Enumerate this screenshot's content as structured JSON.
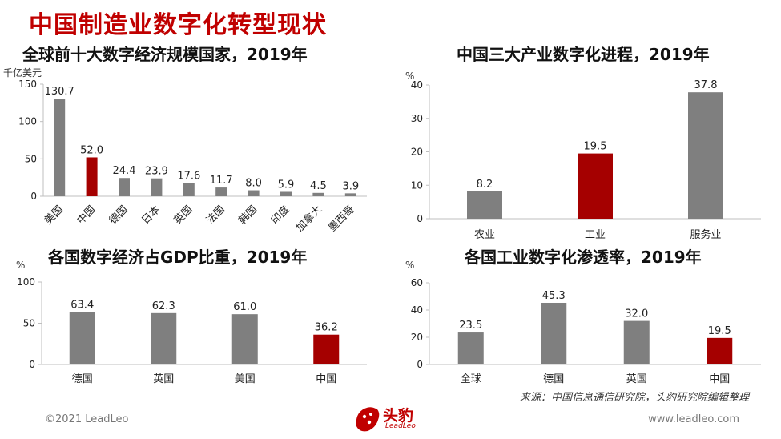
{
  "page_title": "中国制造业数字化转型现状",
  "colors": {
    "highlight": "#a50000",
    "default": "#7f7f7f",
    "title": "#c00000"
  },
  "chart_data": [
    {
      "type": "bar",
      "title": "全球前十大数字经济规模国家，2019年",
      "unit": "千亿美元",
      "categories": [
        "美国",
        "中国",
        "德国",
        "日本",
        "英国",
        "法国",
        "韩国",
        "印度",
        "加拿大",
        "墨西哥"
      ],
      "values": [
        130.7,
        52.0,
        24.4,
        23.9,
        17.6,
        11.7,
        8.0,
        5.9,
        4.5,
        3.9
      ],
      "value_labels": [
        "130.7",
        "52.0",
        "24.4",
        "23.9",
        "17.6",
        "11.7",
        "8.0",
        "5.9",
        "4.5",
        "3.9"
      ],
      "highlight_index": 1,
      "ylim": [
        0,
        150
      ],
      "yticks": [
        0,
        50,
        100,
        150
      ],
      "ytick_labels": [
        "0",
        "50",
        "100",
        "150"
      ],
      "rotated_labels": true
    },
    {
      "type": "bar",
      "title": "中国三大产业数字化进程，2019年",
      "unit": "%",
      "categories": [
        "农业",
        "工业",
        "服务业"
      ],
      "values": [
        8.2,
        19.5,
        37.8
      ],
      "value_labels": [
        "8.2",
        "19.5",
        "37.8"
      ],
      "highlight_index": 1,
      "ylim": [
        0,
        40
      ],
      "yticks": [
        0,
        10,
        20,
        30,
        40
      ],
      "ytick_labels": [
        "0",
        "10",
        "20",
        "30",
        "40"
      ],
      "rotated_labels": false
    },
    {
      "type": "bar",
      "title": "各国数字经济占GDP比重，2019年",
      "unit": "%",
      "categories": [
        "德国",
        "英国",
        "美国",
        "中国"
      ],
      "values": [
        63.4,
        62.3,
        61.0,
        36.2
      ],
      "value_labels": [
        "63.4",
        "62.3",
        "61.0",
        "36.2"
      ],
      "highlight_index": 3,
      "ylim": [
        0,
        100
      ],
      "yticks": [
        0,
        50,
        100
      ],
      "ytick_labels": [
        "0",
        "50",
        "100"
      ],
      "rotated_labels": false
    },
    {
      "type": "bar",
      "title": "各国工业数字化渗透率，2019年",
      "unit": "%",
      "categories": [
        "全球",
        "德国",
        "英国",
        "中国"
      ],
      "values": [
        23.5,
        45.3,
        32.0,
        19.5
      ],
      "value_labels": [
        "23.5",
        "45.3",
        "32.0",
        "19.5"
      ],
      "highlight_index": 3,
      "ylim": [
        0,
        60
      ],
      "yticks": [
        0,
        20,
        40,
        60
      ],
      "ytick_labels": [
        "0",
        "20",
        "40",
        "60"
      ],
      "rotated_labels": false
    }
  ],
  "source": "来源：中国信息通信研究院，头豹研究院编辑整理",
  "footer": {
    "copyright": "©2021 LeadLeo",
    "url": "www.leadleo.com",
    "brand_name": "头豹",
    "brand_sub": "LeadLeo"
  }
}
